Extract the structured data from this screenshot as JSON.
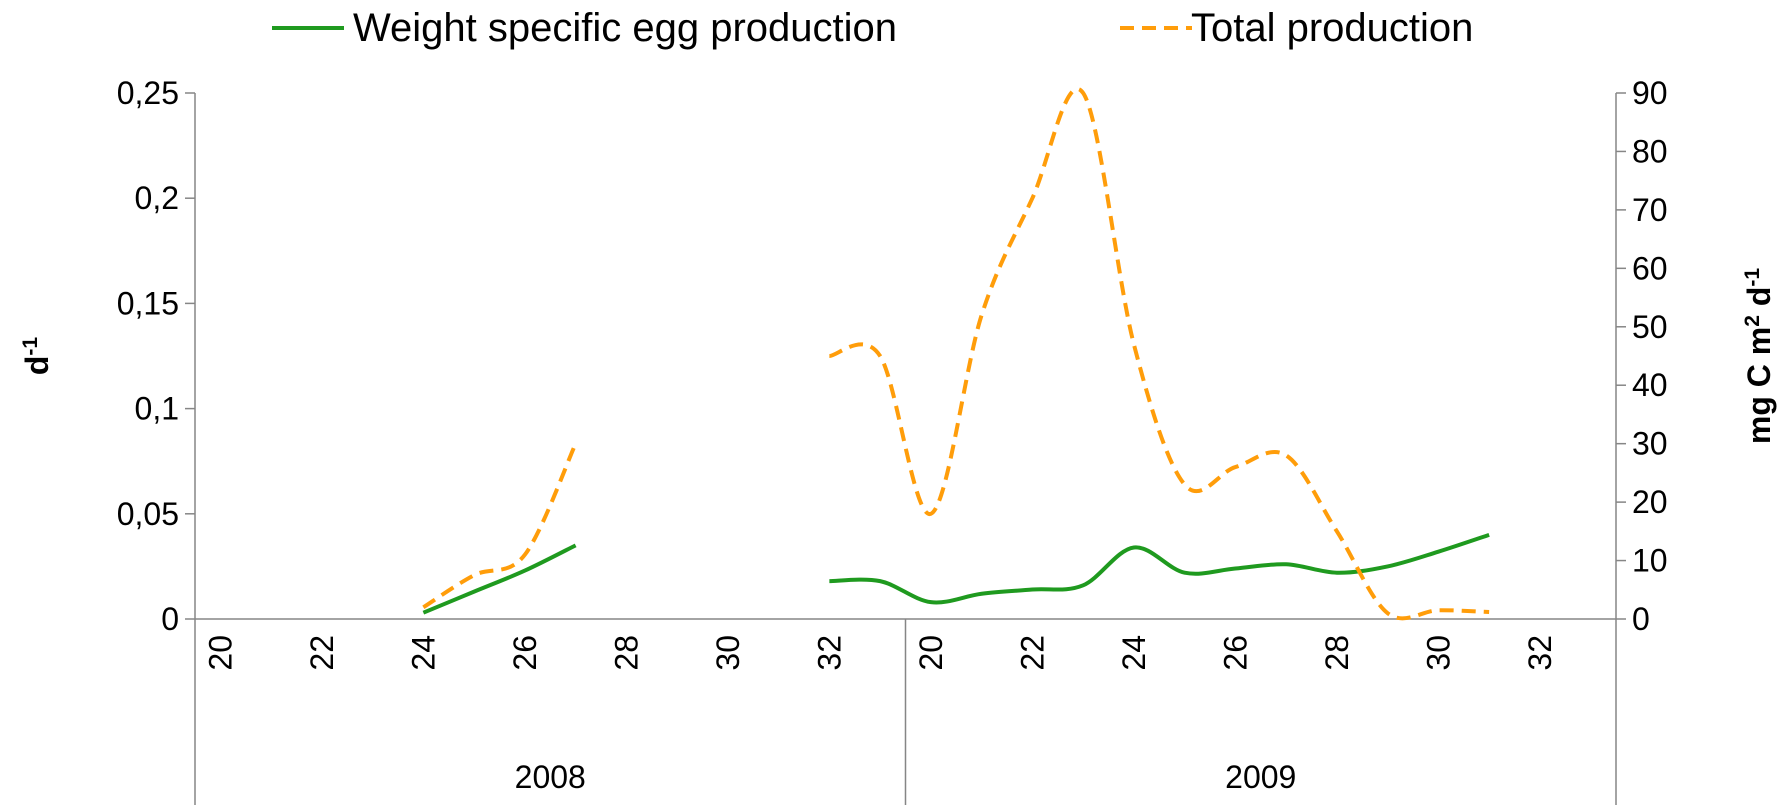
{
  "chart_data": {
    "type": "line",
    "groups": [
      {
        "name": "2008",
        "categories": [
          "20",
          null,
          "22",
          null,
          "24",
          null,
          "26",
          null,
          "28",
          null,
          "30",
          null,
          "32",
          null
        ]
      },
      {
        "name": "2009",
        "categories": [
          "20",
          null,
          "22",
          null,
          "24",
          null,
          "26",
          null,
          "28",
          null,
          "30",
          null,
          "32",
          null
        ]
      }
    ],
    "ylabel": [
      {
        "text": "d"
      },
      {
        "text": "-1",
        "sup": true
      }
    ],
    "y2label": [
      {
        "text": "mg C m"
      },
      {
        "text": "2",
        "sup": true
      },
      {
        "text": " d"
      },
      {
        "text": "-1",
        "sup": true
      }
    ],
    "ylim": [
      0,
      0.25
    ],
    "yticks": [
      0,
      {
        "value": 0.05,
        "label": "0,05"
      },
      {
        "value": 0.1,
        "label": "0,1"
      },
      {
        "value": 0.15,
        "label": "0,15"
      },
      {
        "value": 0.2,
        "label": "0,2"
      },
      {
        "value": 0.25,
        "label": "0,25"
      }
    ],
    "y2lim": [
      0,
      90
    ],
    "y2ticks": [
      0,
      10,
      20,
      30,
      40,
      50,
      60,
      70,
      80,
      90
    ],
    "legend": "top",
    "series": [
      {
        "name": "Weight specific egg production",
        "color": "#1f9a1f",
        "dash": "solid",
        "values": [
          null,
          null,
          null,
          null,
          0.003,
          0.013,
          0.023,
          0.035,
          null,
          null,
          null,
          null,
          0.018,
          0.018,
          0.008,
          0.012,
          0.014,
          0.016,
          0.034,
          0.022,
          0.024,
          0.026,
          0.022,
          0.025,
          0.032,
          0.04,
          null,
          null
        ]
      },
      {
        "name": "Total production",
        "color": "#ff9d0a",
        "dash": "dashed",
        "axis": "y2",
        "values": [
          null,
          null,
          null,
          null,
          2,
          7.5,
          11,
          30,
          null,
          null,
          null,
          null,
          45,
          45,
          18,
          52,
          72,
          90,
          47,
          23,
          26,
          28,
          15,
          1,
          1.5,
          1.2,
          null,
          null
        ]
      }
    ]
  }
}
